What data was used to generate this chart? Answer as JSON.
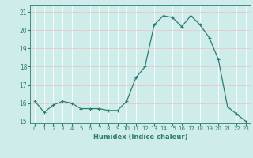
{
  "x": [
    0,
    1,
    2,
    3,
    4,
    5,
    6,
    7,
    8,
    9,
    10,
    11,
    12,
    13,
    14,
    15,
    16,
    17,
    18,
    19,
    20,
    21,
    22,
    23
  ],
  "y": [
    16.1,
    15.5,
    15.9,
    16.1,
    16.0,
    15.7,
    15.7,
    15.7,
    15.6,
    15.6,
    16.1,
    17.4,
    18.0,
    20.3,
    20.8,
    20.7,
    20.2,
    20.8,
    20.3,
    19.6,
    18.4,
    15.8,
    15.4,
    15.0
  ],
  "line_color": "#2d7d6e",
  "bg_color": "#ceecea",
  "grid_color": "#e8c8c8",
  "tick_color": "#2d7d6e",
  "xlabel": "Humidex (Indice chaleur)",
  "xlim": [
    -0.5,
    23.5
  ],
  "ylim": [
    14.9,
    21.4
  ],
  "yticks": [
    15,
    16,
    17,
    18,
    19,
    20,
    21
  ],
  "xticks": [
    0,
    1,
    2,
    3,
    4,
    5,
    6,
    7,
    8,
    9,
    10,
    11,
    12,
    13,
    14,
    15,
    16,
    17,
    18,
    19,
    20,
    21,
    22,
    23
  ]
}
